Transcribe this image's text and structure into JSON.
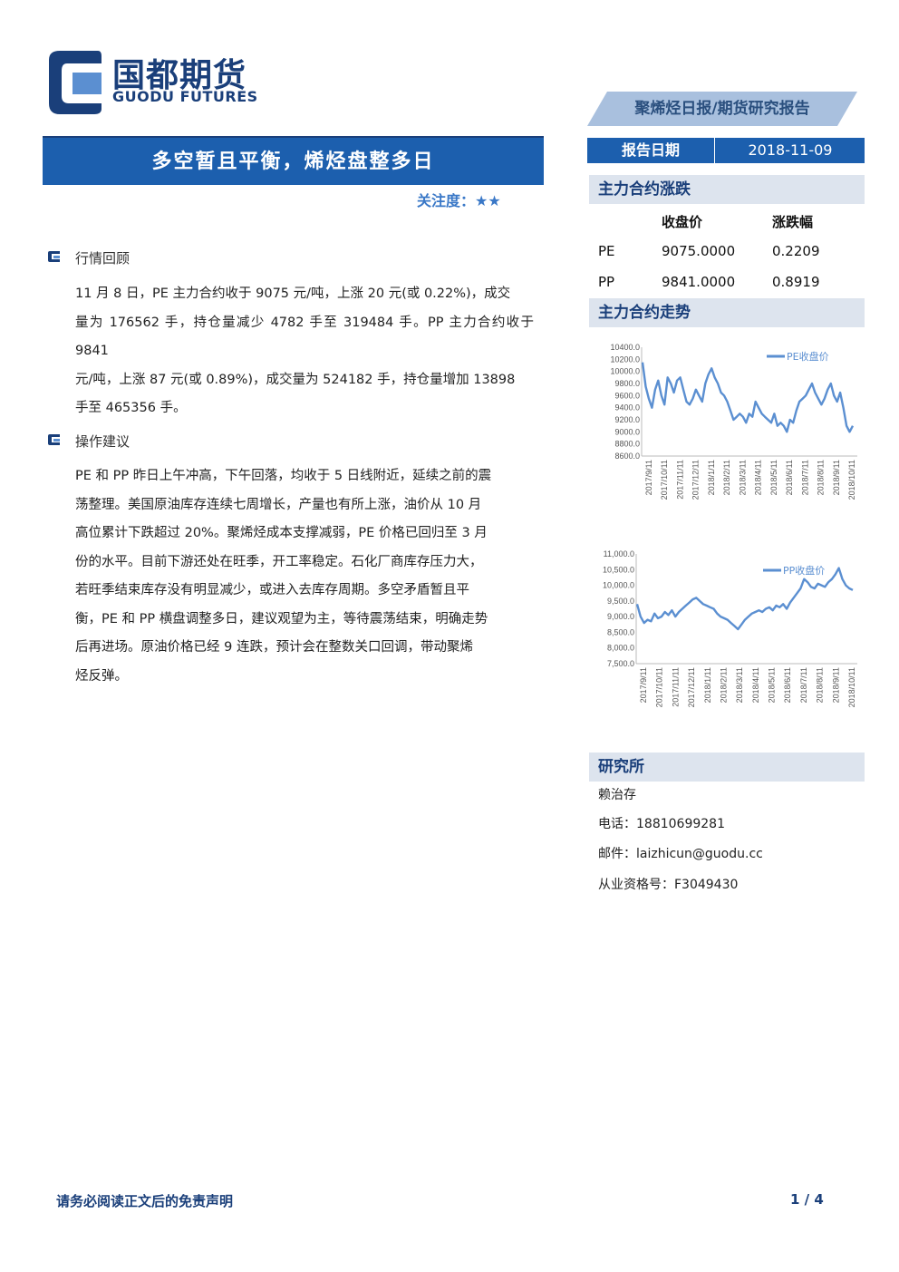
{
  "brand": {
    "name_cn": "国都期货",
    "name_en": "GUODU FUTURES"
  },
  "banner": "聚烯烃日报/期货研究报告",
  "title": "多空暂且平衡，烯烃盘整多日",
  "attention": {
    "label": "关注度：",
    "stars": "★★"
  },
  "report_date": {
    "label": "报告日期",
    "value": "2018-11-09"
  },
  "sections": {
    "review": {
      "heading": "行情回顾",
      "lines": [
        "11 月 8 日，PE 主力合约收于 9075 元/吨，上涨 20 元(或 0.22%)，成交",
        "量为 176562 手，持仓量减少 4782 手至 319484 手。PP 主力合约收于 9841",
        "元/吨，上涨 87 元(或 0.89%)，成交量为 524182 手，持仓量增加 13898",
        "手至 465356 手。"
      ]
    },
    "advice": {
      "heading": "操作建议",
      "lines": [
        "PE 和 PP 昨日上午冲高，下午回落，均收于 5 日线附近，延续之前的震",
        "荡整理。美国原油库存连续七周增长，产量也有所上涨，油价从 10 月",
        "高位累计下跌超过 20%。聚烯烃成本支撑减弱，PE 价格已回归至 3 月",
        "份的水平。目前下游还处在旺季，开工率稳定。石化厂商库存压力大，",
        "若旺季结束库存没有明显减少，或进入去库存周期。多空矛盾暂且平",
        "衡，PE 和 PP 横盘调整多日，建议观望为主，等待震荡结束，明确走势",
        "后再进场。原油价格已经 9 连跌，预计会在整数关口回调，带动聚烯",
        "烃反弹。"
      ]
    }
  },
  "sidebar": {
    "change_heading": "主力合约涨跌",
    "table": {
      "headers": [
        "收盘价",
        "涨跌幅"
      ],
      "rows": [
        {
          "name": "PE",
          "close": "9075.0000",
          "change": "0.2209"
        },
        {
          "name": "PP",
          "close": "9841.0000",
          "change": "0.8919"
        }
      ]
    },
    "trend_heading": "主力合约走势",
    "research_heading": "研究所",
    "contact": {
      "name": "赖治存",
      "phone": "电话：18810699281",
      "email": "邮件：laizhicun@guodu.cc",
      "license": "从业资格号：F3049430"
    }
  },
  "chart_data": [
    {
      "type": "line",
      "series": [
        {
          "name": "PE收盘价",
          "values": [
            10150,
            9750,
            9550,
            9400,
            9700,
            9850,
            9600,
            9450,
            9900,
            9800,
            9650,
            9850,
            9900,
            9700,
            9500,
            9450,
            9550,
            9700,
            9600,
            9500,
            9800,
            9950,
            10050,
            9900,
            9800,
            9650,
            9600,
            9500,
            9350,
            9200,
            9250,
            9300,
            9250,
            9150,
            9300,
            9250,
            9500,
            9400,
            9300,
            9250,
            9200,
            9150,
            9300,
            9100,
            9150,
            9100,
            9000,
            9200,
            9150,
            9350,
            9500,
            9550,
            9600,
            9700,
            9800,
            9650,
            9550,
            9450,
            9550,
            9700,
            9800,
            9600,
            9500,
            9650,
            9400,
            9100,
            9000,
            9100
          ]
        }
      ],
      "x_ticks": [
        "2017/9/11",
        "2017/10/11",
        "2017/11/11",
        "2017/12/11",
        "2018/1/11",
        "2018/2/11",
        "2018/3/11",
        "2018/4/11",
        "2018/5/11",
        "2018/6/11",
        "2018/7/11",
        "2018/8/11",
        "2018/9/11",
        "2018/10/11"
      ],
      "y_ticks": [
        "10400.0",
        "10200.0",
        "10000.0",
        "9800.0",
        "9600.0",
        "9400.0",
        "9200.0",
        "9000.0",
        "8800.0",
        "8600.0"
      ],
      "ylim": [
        8600,
        10400
      ]
    },
    {
      "type": "line",
      "series": [
        {
          "name": "PP收盘价",
          "values": [
            9400,
            9000,
            8800,
            8900,
            8850,
            9100,
            8950,
            9000,
            9150,
            9050,
            9200,
            9000,
            9150,
            9250,
            9350,
            9450,
            9550,
            9600,
            9500,
            9400,
            9350,
            9300,
            9250,
            9100,
            9000,
            8950,
            8900,
            8800,
            8700,
            8600,
            8750,
            8900,
            9000,
            9100,
            9150,
            9200,
            9150,
            9250,
            9300,
            9200,
            9350,
            9300,
            9400,
            9250,
            9450,
            9600,
            9750,
            9900,
            10200,
            10100,
            9950,
            9900,
            10050,
            10000,
            9950,
            10100,
            10200,
            10350,
            10550,
            10200,
            10000,
            9900,
            9850
          ]
        }
      ],
      "x_ticks": [
        "2017/9/11",
        "2017/10/11",
        "2017/11/11",
        "2017/12/11",
        "2018/1/11",
        "2018/2/11",
        "2018/3/11",
        "2018/4/11",
        "2018/5/11",
        "2018/6/11",
        "2018/7/11",
        "2018/8/11",
        "2018/9/11",
        "2018/10/11"
      ],
      "y_ticks": [
        "11,000.0",
        "10,500.0",
        "10,000.0",
        "9,500.0",
        "9,000.0",
        "8,500.0",
        "8,000.0",
        "7,500.0"
      ],
      "ylim": [
        7500,
        11000
      ]
    }
  ],
  "footer": {
    "disclaimer": "请务必阅读正文后的免责声明",
    "page": "1 / 4"
  },
  "colors": {
    "brand_blue": "#1c5fae",
    "line_blue": "#5b8fd1",
    "header_bg": "#dde4ee"
  }
}
